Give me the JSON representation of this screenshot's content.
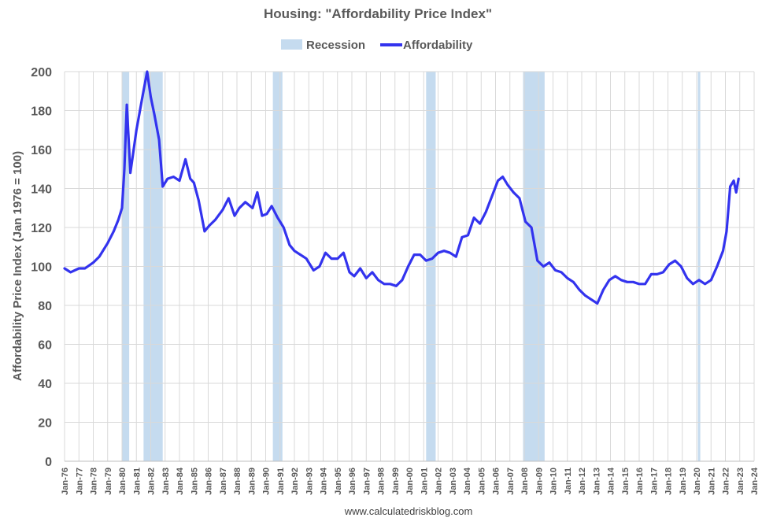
{
  "chart_data": {
    "type": "line",
    "title": "Housing: \"Affordability Price Index\"",
    "ylabel": "Affordability Price Index (Jan 1976 = 100)",
    "xlabel": "",
    "source": "www.calculatedriskblog.com",
    "ylim": [
      0,
      200
    ],
    "yticks": [
      0,
      20,
      40,
      60,
      80,
      100,
      120,
      140,
      160,
      180,
      200
    ],
    "x_range": [
      "Jan-76",
      "Jan-24"
    ],
    "x_tick_labels": [
      "Jan-76",
      "Jan-77",
      "Jan-78",
      "Jan-79",
      "Jan-80",
      "Jan-81",
      "Jan-82",
      "Jan-83",
      "Jan-84",
      "Jan-85",
      "Jan-86",
      "Jan-87",
      "Jan-88",
      "Jan-89",
      "Jan-90",
      "Jan-91",
      "Jan-92",
      "Jan-93",
      "Jan-94",
      "Jan-95",
      "Jan-96",
      "Jan-97",
      "Jan-98",
      "Jan-99",
      "Jan-00",
      "Jan-01",
      "Jan-02",
      "Jan-03",
      "Jan-04",
      "Jan-05",
      "Jan-06",
      "Jan-07",
      "Jan-08",
      "Jan-09",
      "Jan-10",
      "Jan-11",
      "Jan-12",
      "Jan-13",
      "Jan-14",
      "Jan-15",
      "Jan-16",
      "Jan-17",
      "Jan-18",
      "Jan-19",
      "Jan-20",
      "Jan-21",
      "Jan-22",
      "Jan-23",
      "Jan-24"
    ],
    "grid": true,
    "legend_position": "top-center",
    "legend": [
      {
        "name": "Recession",
        "color": "#c5dbef",
        "kind": "area"
      },
      {
        "name": "Affordability",
        "color": "#3333ee",
        "kind": "line"
      }
    ],
    "recessions": [
      {
        "start": "1980-01",
        "end": "1980-07"
      },
      {
        "start": "1981-07",
        "end": "1982-11"
      },
      {
        "start": "1990-07",
        "end": "1991-03"
      },
      {
        "start": "2001-03",
        "end": "2001-11"
      },
      {
        "start": "2007-12",
        "end": "2009-06"
      },
      {
        "start": "2020-02",
        "end": "2020-04"
      }
    ],
    "series": [
      {
        "name": "Affordability",
        "color": "#3333ee",
        "x": [
          "1976-01",
          "1976-06",
          "1977-01",
          "1977-06",
          "1978-01",
          "1978-06",
          "1979-01",
          "1979-06",
          "1979-10",
          "1980-01",
          "1980-03",
          "1980-05",
          "1980-08",
          "1981-01",
          "1981-06",
          "1981-10",
          "1982-01",
          "1982-04",
          "1982-08",
          "1982-11",
          "1983-03",
          "1983-08",
          "1984-01",
          "1984-06",
          "1984-10",
          "1985-01",
          "1985-05",
          "1985-10",
          "1986-02",
          "1986-07",
          "1987-01",
          "1987-06",
          "1987-11",
          "1988-03",
          "1988-08",
          "1989-02",
          "1989-06",
          "1989-10",
          "1990-02",
          "1990-06",
          "1990-11",
          "1991-04",
          "1991-09",
          "1992-01",
          "1992-06",
          "1992-11",
          "1993-05",
          "1993-10",
          "1994-03",
          "1994-08",
          "1995-01",
          "1995-06",
          "1995-11",
          "1996-03",
          "1996-08",
          "1997-01",
          "1997-06",
          "1997-11",
          "1998-04",
          "1998-09",
          "1999-02",
          "1999-07",
          "1999-12",
          "2000-05",
          "2000-10",
          "2001-03",
          "2001-08",
          "2002-01",
          "2002-06",
          "2002-11",
          "2003-04",
          "2003-09",
          "2004-02",
          "2004-07",
          "2004-12",
          "2005-05",
          "2005-10",
          "2006-03",
          "2006-07",
          "2006-11",
          "2007-04",
          "2007-09",
          "2008-02",
          "2008-07",
          "2008-12",
          "2009-05",
          "2009-10",
          "2010-03",
          "2010-08",
          "2011-01",
          "2011-06",
          "2011-11",
          "2012-04",
          "2012-09",
          "2013-02",
          "2013-07",
          "2013-12",
          "2014-05",
          "2014-10",
          "2015-03",
          "2015-08",
          "2016-01",
          "2016-06",
          "2016-11",
          "2017-04",
          "2017-09",
          "2018-02",
          "2018-07",
          "2018-12",
          "2019-05",
          "2019-10",
          "2020-03",
          "2020-08",
          "2021-01",
          "2021-06",
          "2021-11",
          "2022-02",
          "2022-05",
          "2022-08",
          "2022-10",
          "2022-12"
        ],
        "values": [
          99,
          97,
          99,
          99,
          102,
          105,
          112,
          118,
          124,
          130,
          150,
          183,
          148,
          170,
          187,
          200,
          187,
          178,
          165,
          141,
          145,
          146,
          144,
          155,
          145,
          143,
          134,
          118,
          121,
          124,
          129,
          135,
          126,
          130,
          133,
          130,
          138,
          126,
          127,
          131,
          125,
          120,
          111,
          108,
          106,
          104,
          98,
          100,
          107,
          104,
          104,
          107,
          97,
          95,
          99,
          94,
          97,
          93,
          91,
          91,
          90,
          93,
          100,
          106,
          106,
          103,
          104,
          107,
          108,
          107,
          105,
          115,
          116,
          125,
          122,
          128,
          136,
          144,
          146,
          142,
          138,
          135,
          123,
          120,
          103,
          100,
          102,
          98,
          97,
          94,
          92,
          88,
          85,
          83,
          81,
          88,
          93,
          95,
          93,
          92,
          92,
          91,
          91,
          96,
          96,
          97,
          101,
          103,
          100,
          94,
          91,
          93,
          91,
          93,
          100,
          108,
          118,
          141,
          144,
          138,
          145
        ]
      }
    ]
  }
}
